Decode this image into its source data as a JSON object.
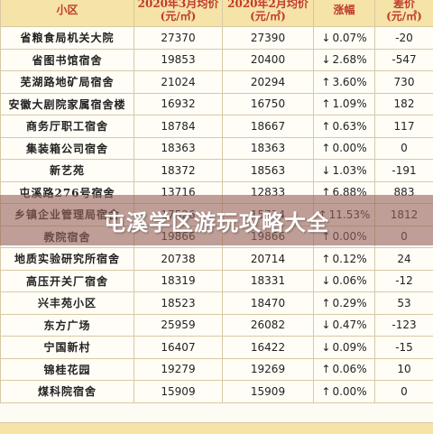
{
  "banner": {
    "title": "屯溪学区游玩攻略大全"
  },
  "table": {
    "headers": {
      "community": "小区",
      "mar_price_l1": "2020年3月均价",
      "mar_price_l2": "(元/㎡)",
      "feb_price_l1": "2020年2月均价",
      "feb_price_l2": "(元/㎡)",
      "change": "涨幅",
      "diff_l1": "差价",
      "diff_l2": "(元/㎡)"
    },
    "rows": [
      {
        "name": "省粮食局机关大院",
        "mar": "27370",
        "feb": "27390",
        "dir": "down",
        "change": "0.07%",
        "diff": "-20"
      },
      {
        "name": "省图书馆宿舍",
        "mar": "19853",
        "feb": "20400",
        "dir": "down",
        "change": "2.68%",
        "diff": "-547"
      },
      {
        "name": "芜湖路地矿局宿舍",
        "mar": "21024",
        "feb": "20294",
        "dir": "up",
        "change": "3.60%",
        "diff": "730"
      },
      {
        "name": "安徽大剧院家属宿舍楼",
        "mar": "16932",
        "feb": "16750",
        "dir": "up",
        "change": "1.09%",
        "diff": "182"
      },
      {
        "name": "商务厅职工宿舍",
        "mar": "18784",
        "feb": "18667",
        "dir": "up",
        "change": "0.63%",
        "diff": "117"
      },
      {
        "name": "集装箱公司宿舍",
        "mar": "18363",
        "feb": "18363",
        "dir": "up",
        "change": "0.00%",
        "diff": "0"
      },
      {
        "name": "新艺苑",
        "mar": "18372",
        "feb": "18563",
        "dir": "down",
        "change": "1.03%",
        "diff": "-191"
      },
      {
        "name": "屯溪路276号宿舍",
        "mar": "13716",
        "feb": "12833",
        "dir": "up",
        "change": "6.88%",
        "diff": "883"
      },
      {
        "name": "乡镇企业管理局宿舍",
        "mar": "17526",
        "feb": "15714",
        "dir": "up",
        "change": "11.53%",
        "diff": "1812"
      },
      {
        "name": "教院宿舍",
        "mar": "19866",
        "feb": "19866",
        "dir": "up",
        "change": "0.00%",
        "diff": "0"
      },
      {
        "name": "地质实验研究所宿舍",
        "mar": "20738",
        "feb": "20714",
        "dir": "up",
        "change": "0.12%",
        "diff": "24"
      },
      {
        "name": "高压开关厂宿舍",
        "mar": "18319",
        "feb": "18331",
        "dir": "down",
        "change": "0.06%",
        "diff": "-12"
      },
      {
        "name": "兴丰苑小区",
        "mar": "18523",
        "feb": "18470",
        "dir": "up",
        "change": "0.29%",
        "diff": "53"
      },
      {
        "name": "东方广场",
        "mar": "25959",
        "feb": "26082",
        "dir": "down",
        "change": "0.47%",
        "diff": "-123"
      },
      {
        "name": "宁国新村",
        "mar": "16407",
        "feb": "16422",
        "dir": "down",
        "change": "0.09%",
        "diff": "-15"
      },
      {
        "name": "锦桂花园",
        "mar": "19279",
        "feb": "19269",
        "dir": "up",
        "change": "0.06%",
        "diff": "10"
      },
      {
        "name": "煤科院宿舍",
        "mar": "15909",
        "feb": "15909",
        "dir": "up",
        "change": "0.00%",
        "diff": "0"
      }
    ]
  },
  "colors": {
    "header_bg": "#f6e3a8",
    "header_text": "#c0392b",
    "up": "#d7342d",
    "down": "#2e8b3a",
    "banner_overlay": "#96645a"
  }
}
